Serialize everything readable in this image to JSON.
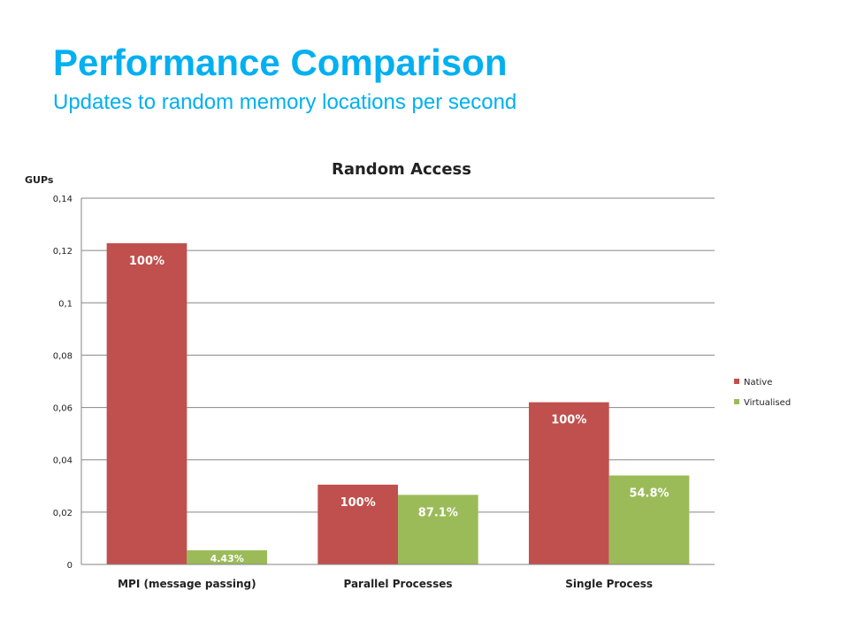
{
  "slide": {
    "title": "Performance Comparison",
    "subtitle": "Updates to random memory locations per second"
  },
  "chart_data": {
    "type": "bar",
    "title": "Random Access",
    "ylabel": "GUPs",
    "xlabel": "",
    "categories": [
      "MPI (message passing)",
      "Parallel Processes",
      "Single Process"
    ],
    "ylim": [
      0,
      0.14
    ],
    "yticks": [
      0,
      0.02,
      0.04,
      0.06,
      0.08,
      0.1,
      0.12,
      0.14
    ],
    "ytick_labels": [
      "0",
      "0,02",
      "0,04",
      "0,06",
      "0,08",
      "0,1",
      "0,12",
      "0,14"
    ],
    "grid": true,
    "legend_position": "right",
    "series": [
      {
        "name": "Native",
        "color": "#c0504d",
        "values": [
          0.1228,
          0.0305,
          0.062
        ],
        "labels": [
          "100%",
          "100%",
          "100%"
        ]
      },
      {
        "name": "Virtualised",
        "color": "#9bbb59",
        "values": [
          0.0054,
          0.0266,
          0.034
        ],
        "labels": [
          "4.43%",
          "87.1%",
          "54.8%"
        ]
      }
    ]
  }
}
